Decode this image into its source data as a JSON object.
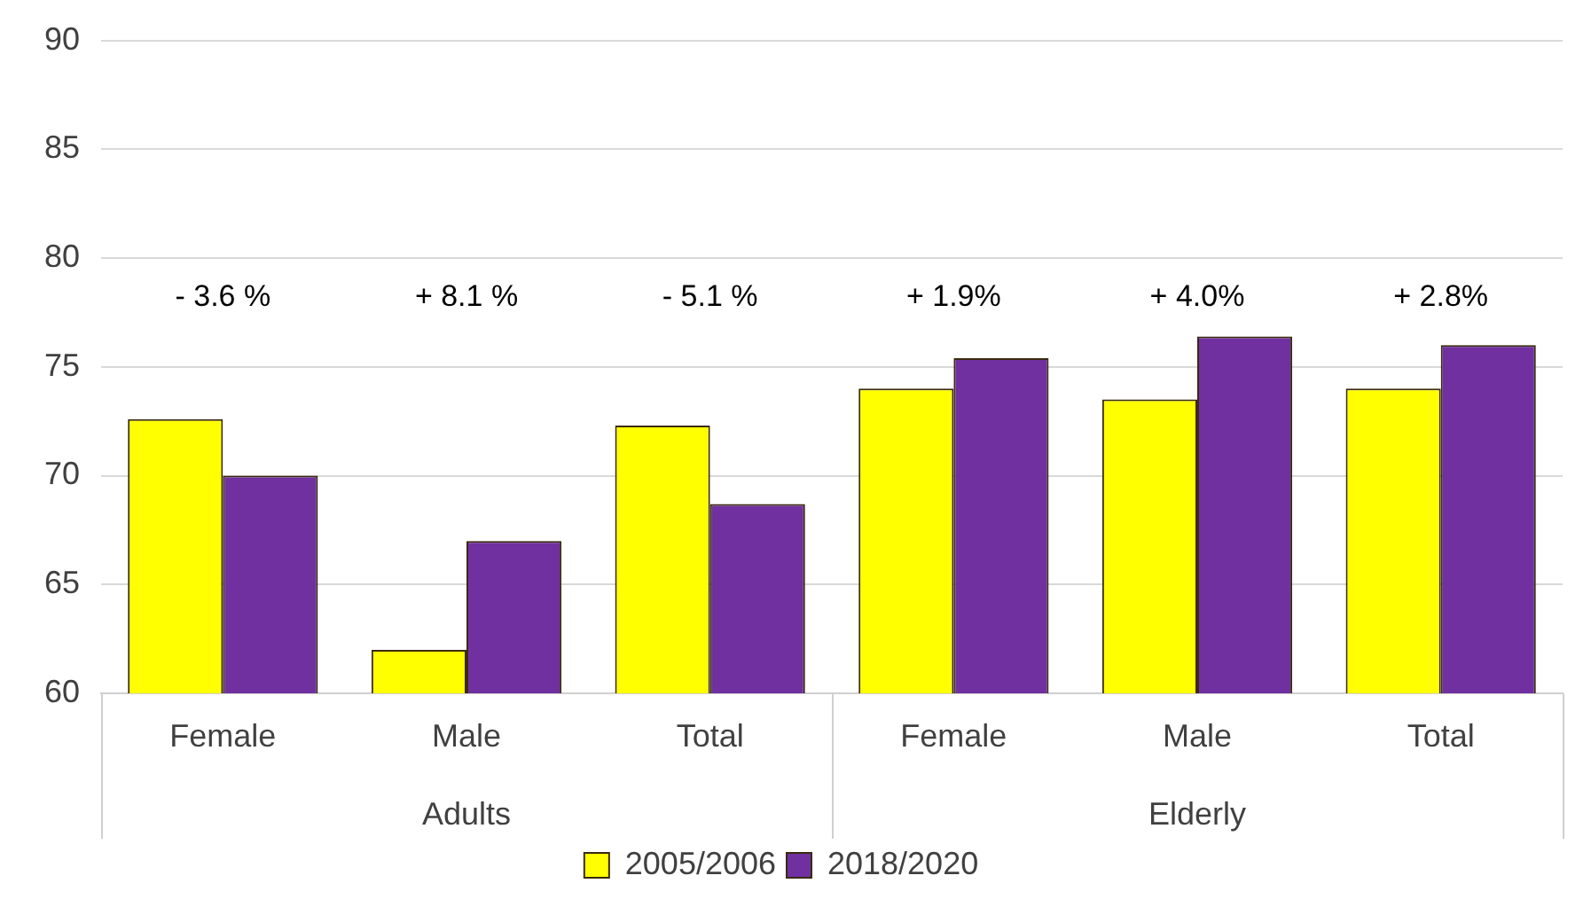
{
  "chart_data": {
    "type": "bar",
    "categories": [
      "Female",
      "Male",
      "Total",
      "Female",
      "Male",
      "Total"
    ],
    "series": [
      {
        "name": "2005/2006",
        "color": "#ffff00",
        "values": [
          72.6,
          62.0,
          72.3,
          74.0,
          73.5,
          74.0
        ]
      },
      {
        "name": "2018/2020",
        "color": "#7030a0",
        "values": [
          70.0,
          67.0,
          68.7,
          75.4,
          76.4,
          76.0
        ]
      }
    ],
    "ylim": [
      60,
      90
    ],
    "yticks": [
      60,
      65,
      70,
      75,
      80,
      85,
      90
    ],
    "grid": "y",
    "legend": "bottom",
    "annotations": [
      "- 3.6 %",
      "+ 8.1 %",
      "- 5.1 %",
      "+ 1.9%",
      "+ 4.0%",
      "+ 2.8%",
      "Adults",
      "Elderly"
    ]
  }
}
